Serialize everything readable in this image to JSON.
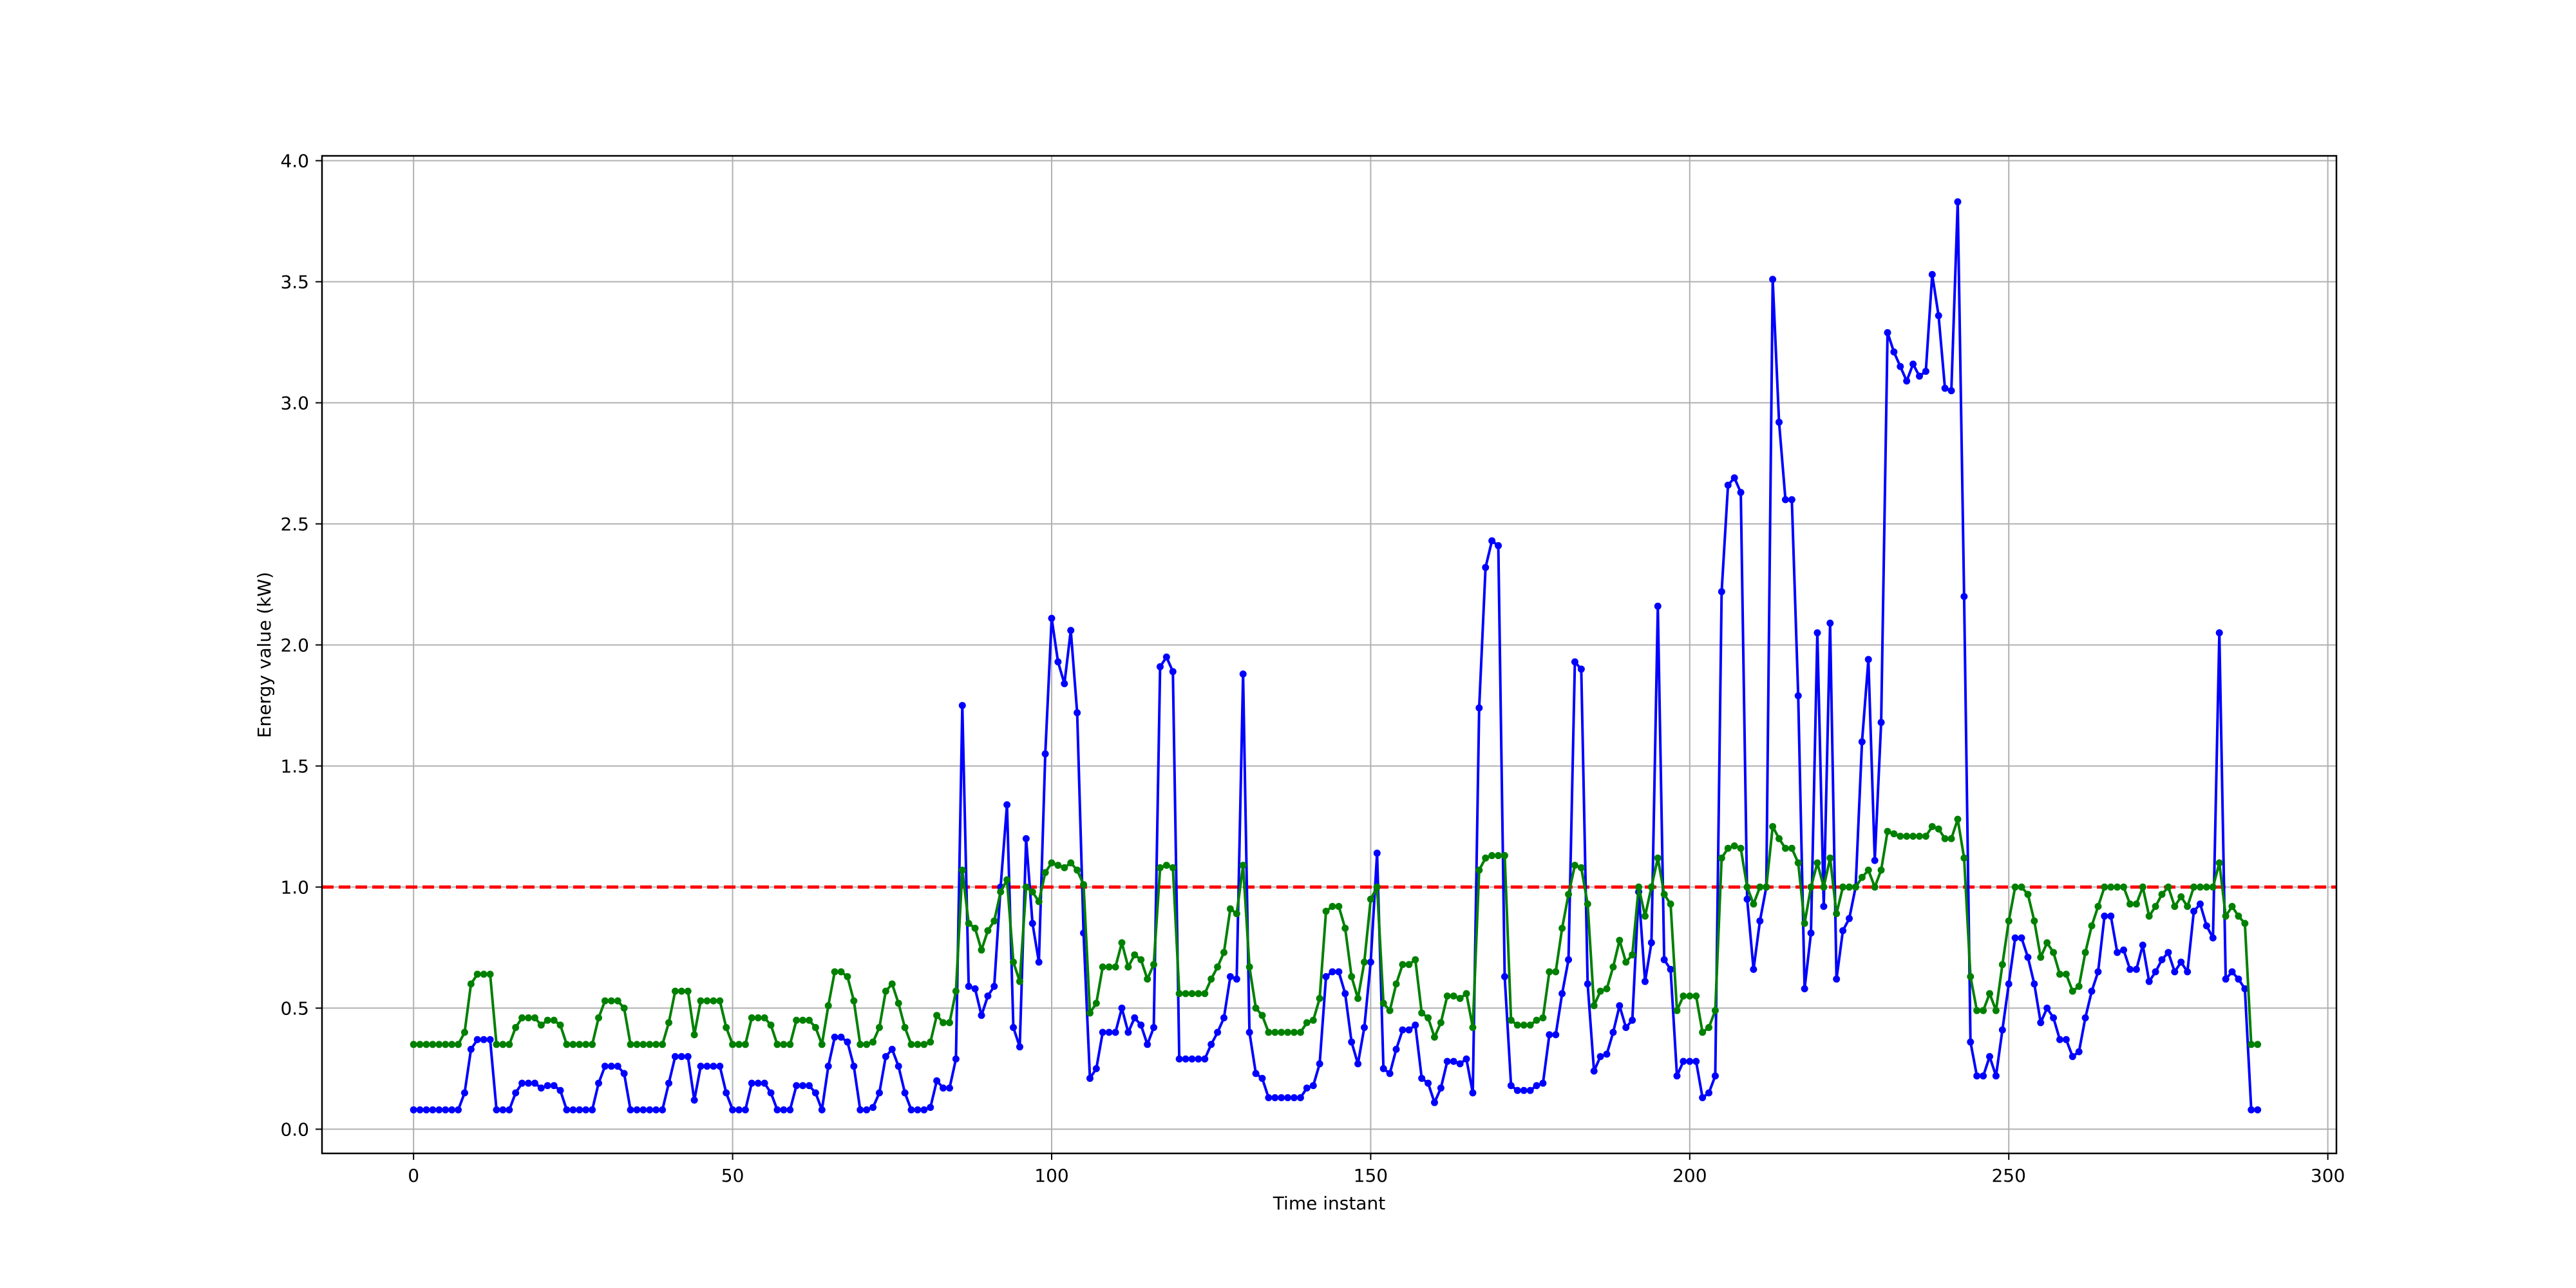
{
  "chart_data": {
    "type": "line",
    "title": "",
    "xlabel": "Time instant",
    "ylabel": "Energy value (kW)",
    "xlim": [
      -14.35,
      301.35
    ],
    "ylim": [
      -0.1,
      4.02
    ],
    "xticks": [
      0,
      50,
      100,
      150,
      200,
      250,
      300
    ],
    "yticks": [
      0.0,
      0.5,
      1.0,
      1.5,
      2.0,
      2.5,
      3.0,
      3.5,
      4.0
    ],
    "grid": true,
    "threshold": {
      "y": 1.0,
      "color": "#ff0000",
      "style": "dashed"
    },
    "series": [
      {
        "color": "#0000ff",
        "x_start": 0,
        "values": [
          0.08,
          0.08,
          0.08,
          0.08,
          0.08,
          0.08,
          0.08,
          0.08,
          0.15,
          0.33,
          0.37,
          0.37,
          0.37,
          0.08,
          0.08,
          0.08,
          0.15,
          0.19,
          0.19,
          0.19,
          0.17,
          0.18,
          0.18,
          0.16,
          0.08,
          0.08,
          0.08,
          0.08,
          0.08,
          0.19,
          0.26,
          0.26,
          0.26,
          0.23,
          0.08,
          0.08,
          0.08,
          0.08,
          0.08,
          0.08,
          0.19,
          0.3,
          0.3,
          0.3,
          0.12,
          0.26,
          0.26,
          0.26,
          0.26,
          0.15,
          0.08,
          0.08,
          0.08,
          0.19,
          0.19,
          0.19,
          0.15,
          0.08,
          0.08,
          0.08,
          0.18,
          0.18,
          0.18,
          0.15,
          0.08,
          0.26,
          0.38,
          0.38,
          0.36,
          0.26,
          0.08,
          0.08,
          0.09,
          0.15,
          0.3,
          0.33,
          0.26,
          0.15,
          0.08,
          0.08,
          0.08,
          0.09,
          0.2,
          0.17,
          0.17,
          0.29,
          1.75,
          0.59,
          0.58,
          0.47,
          0.55,
          0.59,
          1.0,
          1.34,
          0.42,
          0.34,
          1.2,
          0.85,
          0.69,
          1.55,
          2.11,
          1.93,
          1.84,
          2.06,
          1.72,
          0.81,
          0.21,
          0.25,
          0.4,
          0.4,
          0.4,
          0.5,
          0.4,
          0.46,
          0.43,
          0.35,
          0.42,
          1.91,
          1.95,
          1.89,
          0.29,
          0.29,
          0.29,
          0.29,
          0.29,
          0.35,
          0.4,
          0.46,
          0.63,
          0.62,
          1.88,
          0.4,
          0.23,
          0.21,
          0.13,
          0.13,
          0.13,
          0.13,
          0.13,
          0.13,
          0.17,
          0.18,
          0.27,
          0.63,
          0.65,
          0.65,
          0.56,
          0.36,
          0.27,
          0.42,
          0.69,
          1.14,
          0.25,
          0.23,
          0.33,
          0.41,
          0.41,
          0.43,
          0.21,
          0.19,
          0.11,
          0.17,
          0.28,
          0.28,
          0.27,
          0.29,
          0.15,
          1.74,
          2.32,
          2.43,
          2.41,
          0.63,
          0.18,
          0.16,
          0.16,
          0.16,
          0.18,
          0.19,
          0.39,
          0.39,
          0.56,
          0.7,
          1.93,
          1.9,
          0.6,
          0.24,
          0.3,
          0.31,
          0.4,
          0.51,
          0.42,
          0.45,
          0.98,
          0.61,
          0.77,
          2.16,
          0.7,
          0.66,
          0.22,
          0.28,
          0.28,
          0.28,
          0.13,
          0.15,
          0.22,
          2.22,
          2.66,
          2.69,
          2.63,
          0.95,
          0.66,
          0.86,
          1.0,
          3.51,
          2.92,
          2.6,
          2.6,
          1.79,
          0.58,
          0.81,
          2.05,
          0.92,
          2.09,
          0.62,
          0.82,
          0.87,
          1.0,
          1.6,
          1.94,
          1.11,
          1.68,
          3.29,
          3.21,
          3.15,
          3.09,
          3.16,
          3.11,
          3.13,
          3.53,
          3.36,
          3.06,
          3.05,
          3.83,
          2.2,
          0.36,
          0.22,
          0.22,
          0.3,
          0.22,
          0.41,
          0.6,
          0.79,
          0.79,
          0.71,
          0.6,
          0.44,
          0.5,
          0.46,
          0.37,
          0.37,
          0.3,
          0.32,
          0.46,
          0.57,
          0.65,
          0.88,
          0.88,
          0.73,
          0.74,
          0.66,
          0.66,
          0.76,
          0.61,
          0.65,
          0.7,
          0.73,
          0.65,
          0.69,
          0.65,
          0.9,
          0.93,
          0.84,
          0.79,
          2.05,
          0.62,
          0.65,
          0.62,
          0.58,
          0.08,
          0.08
        ]
      },
      {
        "color": "#008000",
        "x_start": 0,
        "values": [
          0.35,
          0.35,
          0.35,
          0.35,
          0.35,
          0.35,
          0.35,
          0.35,
          0.4,
          0.6,
          0.64,
          0.64,
          0.64,
          0.35,
          0.35,
          0.35,
          0.42,
          0.46,
          0.46,
          0.46,
          0.43,
          0.45,
          0.45,
          0.43,
          0.35,
          0.35,
          0.35,
          0.35,
          0.35,
          0.46,
          0.53,
          0.53,
          0.53,
          0.5,
          0.35,
          0.35,
          0.35,
          0.35,
          0.35,
          0.35,
          0.44,
          0.57,
          0.57,
          0.57,
          0.39,
          0.53,
          0.53,
          0.53,
          0.53,
          0.42,
          0.35,
          0.35,
          0.35,
          0.46,
          0.46,
          0.46,
          0.43,
          0.35,
          0.35,
          0.35,
          0.45,
          0.45,
          0.45,
          0.42,
          0.35,
          0.51,
          0.65,
          0.65,
          0.63,
          0.53,
          0.35,
          0.35,
          0.36,
          0.42,
          0.57,
          0.6,
          0.52,
          0.42,
          0.35,
          0.35,
          0.35,
          0.36,
          0.47,
          0.44,
          0.44,
          0.57,
          1.07,
          0.85,
          0.83,
          0.74,
          0.82,
          0.86,
          0.98,
          1.03,
          0.69,
          0.61,
          1.0,
          0.98,
          0.94,
          1.06,
          1.1,
          1.09,
          1.08,
          1.1,
          1.07,
          1.01,
          0.48,
          0.52,
          0.67,
          0.67,
          0.67,
          0.77,
          0.67,
          0.72,
          0.7,
          0.62,
          0.68,
          1.08,
          1.09,
          1.08,
          0.56,
          0.56,
          0.56,
          0.56,
          0.56,
          0.62,
          0.67,
          0.73,
          0.91,
          0.89,
          1.09,
          0.67,
          0.5,
          0.47,
          0.4,
          0.4,
          0.4,
          0.4,
          0.4,
          0.4,
          0.44,
          0.45,
          0.54,
          0.9,
          0.92,
          0.92,
          0.83,
          0.63,
          0.54,
          0.69,
          0.95,
          1.0,
          0.52,
          0.49,
          0.6,
          0.68,
          0.68,
          0.7,
          0.48,
          0.46,
          0.38,
          0.44,
          0.55,
          0.55,
          0.54,
          0.56,
          0.42,
          1.07,
          1.12,
          1.13,
          1.13,
          1.13,
          0.45,
          0.43,
          0.43,
          0.43,
          0.45,
          0.46,
          0.65,
          0.65,
          0.83,
          0.97,
          1.09,
          1.08,
          0.93,
          0.51,
          0.57,
          0.58,
          0.67,
          0.78,
          0.69,
          0.72,
          1.0,
          0.88,
          1.0,
          1.12,
          0.97,
          0.93,
          0.49,
          0.55,
          0.55,
          0.55,
          0.4,
          0.42,
          0.49,
          1.12,
          1.16,
          1.17,
          1.16,
          1.0,
          0.93,
          1.0,
          1.0,
          1.25,
          1.2,
          1.16,
          1.16,
          1.1,
          0.85,
          1.0,
          1.1,
          1.0,
          1.12,
          0.89,
          1.0,
          1.0,
          1.0,
          1.04,
          1.07,
          1.0,
          1.07,
          1.23,
          1.22,
          1.21,
          1.21,
          1.21,
          1.21,
          1.21,
          1.25,
          1.24,
          1.2,
          1.2,
          1.28,
          1.12,
          0.63,
          0.49,
          0.49,
          0.56,
          0.49,
          0.68,
          0.86,
          1.0,
          1.0,
          0.97,
          0.86,
          0.71,
          0.77,
          0.73,
          0.64,
          0.64,
          0.57,
          0.59,
          0.73,
          0.84,
          0.92,
          1.0,
          1.0,
          1.0,
          1.0,
          0.93,
          0.93,
          1.0,
          0.88,
          0.92,
          0.97,
          1.0,
          0.92,
          0.96,
          0.92,
          1.0,
          1.0,
          1.0,
          1.0,
          1.1,
          0.88,
          0.92,
          0.88,
          0.85,
          0.35,
          0.35
        ]
      }
    ]
  }
}
